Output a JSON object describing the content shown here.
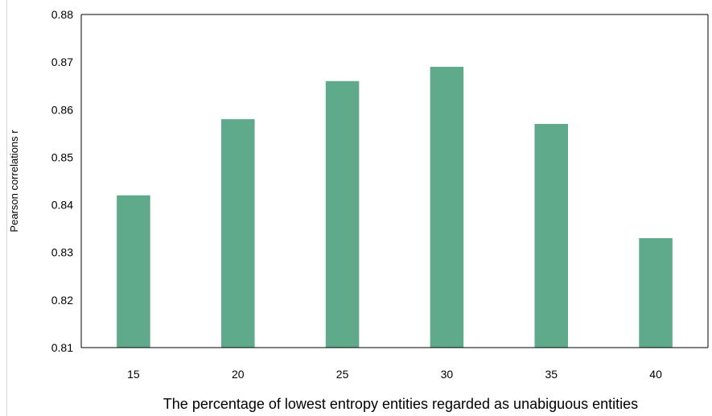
{
  "chart_data": {
    "type": "bar",
    "title": "",
    "xlabel": "The  percentage of lowest entropy entities regarded as unabiguous entities",
    "ylabel": "Pearson correlations r",
    "categories": [
      "15",
      "20",
      "25",
      "30",
      "35",
      "40"
    ],
    "values": [
      0.842,
      0.858,
      0.866,
      0.869,
      0.857,
      0.833
    ],
    "ylim": [
      0.81,
      0.88
    ],
    "yticks": [
      "0.81",
      "0.82",
      "0.83",
      "0.84",
      "0.85",
      "0.86",
      "0.87",
      "0.88"
    ],
    "grid": false,
    "legend": "none",
    "bar_color": "#5faa8a"
  }
}
